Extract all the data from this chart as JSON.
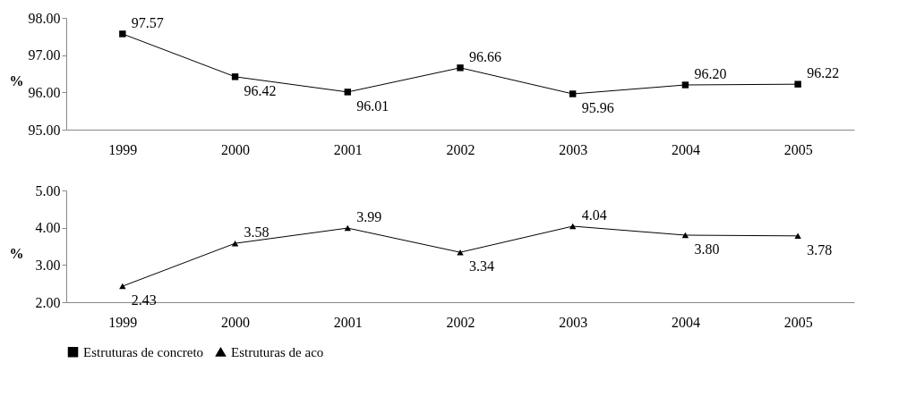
{
  "chart_data": [
    {
      "type": "line",
      "categories": [
        "1999",
        "2000",
        "2001",
        "2002",
        "2003",
        "2004",
        "2005"
      ],
      "ylabel": "%",
      "ylim": [
        95,
        98
      ],
      "yticks": [
        {
          "value": 95,
          "label": "95.00"
        },
        {
          "value": 96,
          "label": "96.00"
        },
        {
          "value": 97,
          "label": "97.00"
        },
        {
          "value": 98,
          "label": "98.00"
        }
      ],
      "marker": "square",
      "legend": "bottom",
      "series": [
        {
          "name": "Estruturas de concreto",
          "color": "#000000",
          "values": [
            97.57,
            96.42,
            96.01,
            96.66,
            95.96,
            96.2,
            96.22
          ],
          "value_labels": [
            "97.57",
            "96.42",
            "96.01",
            "96.66",
            "95.96",
            "96.20",
            "96.22"
          ]
        }
      ]
    },
    {
      "type": "line",
      "categories": [
        "1999",
        "2000",
        "2001",
        "2002",
        "2003",
        "2004",
        "2005"
      ],
      "ylabel": "%",
      "ylim": [
        2,
        5
      ],
      "yticks": [
        {
          "value": 2,
          "label": "2.00"
        },
        {
          "value": 3,
          "label": "3.00"
        },
        {
          "value": 4,
          "label": "4.00"
        },
        {
          "value": 5,
          "label": "5.00"
        }
      ],
      "marker": "triangle",
      "legend": "bottom",
      "series": [
        {
          "name": "Estruturas de aco",
          "color": "#000000",
          "values": [
            2.43,
            3.58,
            3.99,
            3.34,
            4.04,
            3.8,
            3.78
          ],
          "value_labels": [
            "2.43",
            "3.58",
            "3.99",
            "3.34",
            "4.04",
            "3.80",
            "3.78"
          ]
        }
      ]
    }
  ]
}
